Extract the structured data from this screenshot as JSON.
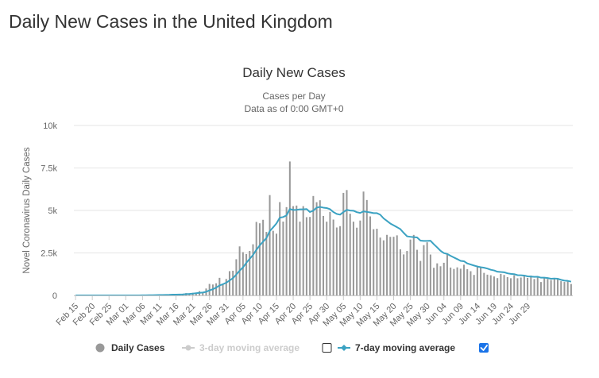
{
  "page": {
    "title": "Daily New Cases in the United Kingdom"
  },
  "chart_data": {
    "type": "bar",
    "title": "Daily New Cases",
    "subtitle_lines": [
      "Cases per Day",
      "Data as of 0:00 GMT+0"
    ],
    "ylabel": "Novel Coronavirus Daily Cases",
    "xlabel": "",
    "ylim": [
      0,
      10000
    ],
    "y_ticks": [
      0,
      2500,
      5000,
      7500,
      10000
    ],
    "y_tick_labels": [
      "0",
      "2.5k",
      "5k",
      "7.5k",
      "10k"
    ],
    "x_tick_labels": [
      "Feb 15",
      "Feb 20",
      "Feb 25",
      "Mar 01",
      "Mar 06",
      "Mar 11",
      "Mar 16",
      "Mar 21",
      "Mar 26",
      "Mar 31",
      "Apr 05",
      "Apr 10",
      "Apr 15",
      "Apr 20",
      "Apr 25",
      "Apr 30",
      "May 05",
      "May 10",
      "May 15",
      "May 20",
      "May 25",
      "May 30",
      "Jun 04",
      "Jun 09",
      "Jun 14",
      "Jun 19",
      "Jun 24",
      "Jun 29"
    ],
    "x_tick_every": 5,
    "grid": true,
    "legend_position": "bottom",
    "colors": {
      "bars": "#999999",
      "moving_avg_7": "#3ba2c2",
      "moving_avg_3": "#cccccc",
      "axis_text": "#666666",
      "gridline": "#e6e6e6",
      "checkbox_checked": "#1a73e8"
    },
    "legend": [
      {
        "label": "Daily Cases",
        "marker": "circle",
        "color": "#999999",
        "enabled": true
      },
      {
        "label": "3-day moving average",
        "marker": "line-dot",
        "color": "#cccccc",
        "enabled": false
      },
      {
        "label": "7-day moving average",
        "marker": "line-diamond",
        "color": "#3ba2c2",
        "enabled": true
      }
    ],
    "checkboxes": {
      "moving_avg_3_checked": false,
      "moving_avg_7_checked": true
    },
    "series": [
      {
        "name": "Daily Cases",
        "kind": "bar",
        "values": [
          0,
          0,
          0,
          0,
          0,
          0,
          0,
          0,
          0,
          0,
          0,
          0,
          0,
          0,
          0,
          0,
          0,
          4,
          5,
          13,
          12,
          13,
          25,
          12,
          35,
          30,
          48,
          41,
          46,
          67,
          47,
          62,
          83,
          134,
          117,
          152,
          160,
          251,
          146,
          407,
          676,
          643,
          714,
          1035,
          665,
          967,
          1427,
          1452,
          2129,
          2885,
          2546,
          2433,
          2619,
          3009,
          4324,
          4244,
          4450,
          3735,
          5903,
          3802,
          3634,
          5491,
          4344,
          5195,
          7880,
          5252,
          5288,
          4342,
          5252,
          4603,
          4617,
          5850,
          5487,
          5599,
          4676,
          4339,
          4913,
          4463,
          3996,
          4076,
          6032,
          6201,
          4806,
          4339,
          3985,
          4406,
          6111,
          5614,
          4649,
          3896,
          3923,
          3403,
          3242,
          3563,
          3446,
          3450,
          3534,
          2713,
          2412,
          2615,
          3287,
          3560,
          2684,
          2029,
          2959,
          3125,
          2405,
          1625,
          1887,
          1715,
          1920,
          2418,
          1640,
          1557,
          1650,
          1571,
          1805,
          1541,
          1425,
          1205,
          1741,
          1670,
          1326,
          1221,
          1187,
          1115,
          1019,
          1266,
          1203,
          1079,
          1011,
          1186,
          1009,
          1053,
          1172,
          1031,
          1169,
          964,
          1051,
          788,
          1072,
          969,
          903,
          1026,
          1021,
          838,
          791,
          815,
          670
        ],
        "daily_values": [
          0,
          0,
          0,
          0,
          0,
          0,
          0,
          0,
          0,
          0,
          0,
          0,
          0,
          0,
          0,
          0,
          0,
          4,
          5,
          13,
          12,
          13,
          25,
          12,
          35,
          30,
          48,
          41,
          46,
          67,
          47,
          62,
          83,
          134,
          117,
          152,
          160,
          251,
          146,
          407,
          676,
          643,
          714,
          1035,
          665,
          967,
          1427,
          1452,
          2129,
          2885,
          2546,
          2433,
          2619,
          3009,
          4324,
          4244,
          4450,
          3735,
          5903,
          3802,
          3634,
          5491,
          4344,
          5195,
          7880,
          5252,
          5288,
          4342,
          5252,
          4603,
          4617,
          5850,
          5487,
          5599,
          4676,
          4339,
          4913,
          4463,
          3996,
          4076,
          6032,
          6201,
          4806,
          4339,
          3985,
          4406,
          6111,
          5614,
          4649,
          3896,
          3923,
          3403,
          3242,
          3563,
          3446,
          3450,
          3534,
          2713,
          2412,
          2615,
          3287,
          3560,
          2684,
          2029,
          2959,
          3125,
          2405,
          1625,
          1887,
          1715,
          1920,
          2418,
          1640,
          1557,
          1650,
          1571,
          1805,
          1541,
          1425,
          1205,
          1741,
          1670,
          1326,
          1221,
          1187,
          1115,
          1019,
          1266,
          1203,
          1079,
          1011,
          1186,
          1009,
          1053,
          1172,
          1031,
          1169,
          964,
          1051,
          788,
          1072,
          969,
          903,
          1026,
          1021,
          838,
          791,
          815,
          670
        ]
      },
      {
        "name": "7-day moving average",
        "kind": "line",
        "values": [
          0,
          0,
          0,
          0,
          0,
          0,
          0,
          0,
          0,
          0,
          0,
          0,
          0,
          0,
          0,
          0,
          0,
          1,
          1,
          3,
          5,
          7,
          10,
          12,
          16,
          21,
          26,
          31,
          35,
          45,
          49,
          55,
          60,
          74,
          88,
          107,
          128,
          153,
          171,
          211,
          294,
          366,
          460,
          586,
          660,
          747,
          879,
          1016,
          1226,
          1456,
          1648,
          1920,
          2151,
          2378,
          2683,
          2938,
          3165,
          3370,
          3785,
          4004,
          4236,
          4574,
          4611,
          4709,
          5082,
          5030,
          5038,
          5062,
          5066,
          5083,
          4909,
          4987,
          5163,
          5207,
          5166,
          5142,
          5071,
          4906,
          4797,
          4751,
          4904,
          5035,
          4996,
          4985,
          4898,
          4855,
          4944,
          4911,
          4884,
          4841,
          4840,
          4749,
          4533,
          4383,
          4232,
          4122,
          4016,
          3903,
          3680,
          3478,
          3449,
          3429,
          3412,
          3226,
          3209,
          3209,
          3218,
          3011,
          2823,
          2625,
          2490,
          2439,
          2331,
          2232,
          2136,
          2034,
          2011,
          1882,
          1818,
          1759,
          1701,
          1660,
          1631,
          1580,
          1510,
          1468,
          1395,
          1376,
          1363,
          1300,
          1268,
          1252,
          1191,
          1187,
          1170,
          1122,
          1110,
          1095,
          1100,
          1043,
          1046,
          1020,
          983,
          996,
          979,
          917,
          870,
          856,
          810
        ]
      }
    ]
  }
}
